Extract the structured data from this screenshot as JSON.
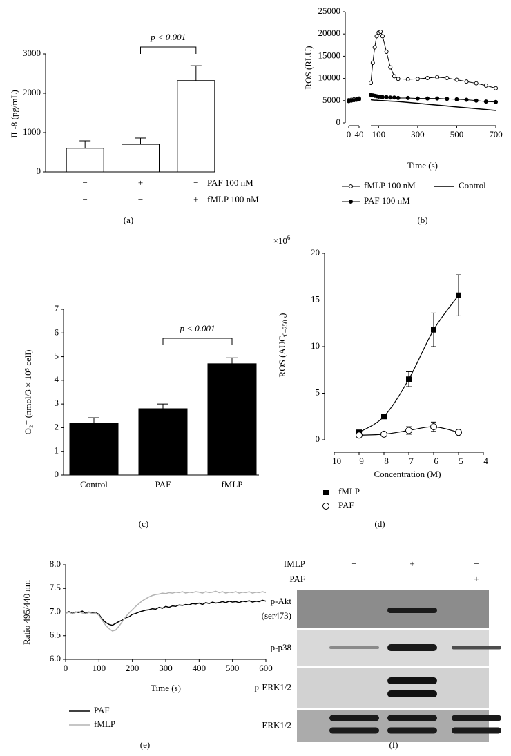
{
  "chart_data": [
    {
      "type": "bar",
      "label": "(a)",
      "ylabel": "IL-8 (pg/mL)",
      "categories": [
        null,
        null,
        null
      ],
      "values": [
        600,
        700,
        2320
      ],
      "errors": [
        190,
        160,
        380
      ],
      "color": "#ffffff",
      "ylim": [
        0,
        3000
      ],
      "yticks": [
        0,
        1000,
        2000,
        3000
      ],
      "annotation": "p < 0.001",
      "conditions": [
        {
          "name": "PAF 100 nM",
          "signs": [
            "−",
            "+",
            "−"
          ]
        },
        {
          "name": "fMLP 100 nM",
          "signs": [
            "−",
            "−",
            "+"
          ]
        }
      ]
    },
    {
      "type": "line",
      "label": "(b)",
      "ylabel": "ROS (RLU)",
      "xlabel": "Time (s)",
      "x": [
        0,
        10,
        20,
        30,
        40,
        50,
        60,
        70,
        80,
        90,
        100,
        110,
        120,
        140,
        160,
        180,
        200,
        250,
        300,
        350,
        400,
        450,
        500,
        550,
        600,
        650,
        700
      ],
      "xlim": [
        0,
        700
      ],
      "x_break": [
        40,
        60
      ],
      "xticks": [
        0,
        40,
        100,
        300,
        500,
        700
      ],
      "ylim": [
        0,
        25000
      ],
      "yticks": [
        0,
        5000,
        10000,
        15000,
        20000,
        25000
      ],
      "series": [
        {
          "name": "fMLP 100 nM",
          "color": "#000000",
          "marker": "open",
          "values": [
            5100,
            5200,
            5300,
            5300,
            5500,
            null,
            9000,
            13500,
            17000,
            19500,
            20300,
            20500,
            19500,
            16000,
            12500,
            10500,
            9900,
            9800,
            9900,
            10100,
            10300,
            10100,
            9700,
            9300,
            8900,
            8400,
            7800
          ]
        },
        {
          "name": "PAF 100 nM",
          "color": "#000000",
          "marker": "filled",
          "values": [
            4900,
            5000,
            5100,
            5200,
            5300,
            null,
            6300,
            6200,
            6100,
            6000,
            5900,
            5900,
            5800,
            5800,
            5700,
            5700,
            5600,
            5600,
            5500,
            5500,
            5500,
            5400,
            5300,
            5200,
            5000,
            4800,
            4700
          ]
        },
        {
          "name": "Control",
          "color": "#000000",
          "marker": "none",
          "values": [
            5000,
            5000,
            5000,
            5000,
            5000,
            null,
            5200,
            5150,
            5100,
            5100,
            5050,
            5000,
            5000,
            4950,
            4900,
            4850,
            4800,
            4600,
            4400,
            4200,
            4000,
            3800,
            3600,
            3400,
            3200,
            3000,
            2800
          ]
        }
      ]
    },
    {
      "type": "bar",
      "label": "(c)",
      "ylabel": "O₂⁻ (nmol/3 × 10⁵ cell)",
      "categories": [
        "Control",
        "PAF",
        "fMLP"
      ],
      "values": [
        2.2,
        2.8,
        4.7
      ],
      "errors": [
        0.22,
        0.2,
        0.25
      ],
      "color": "#000000",
      "ylim": [
        0,
        7
      ],
      "yticks": [
        0,
        1,
        2,
        3,
        4,
        5,
        6,
        7
      ],
      "annotation": "p < 0.001"
    },
    {
      "type": "scatter",
      "label": "(d)",
      "ylabel": [
        "ROS (AUC",
        "0–750 s",
        ")"
      ],
      "xlabel": "Concentration (M)",
      "multiplier": [
        "×10",
        "6"
      ],
      "x": [
        -9,
        -8,
        -7,
        -6,
        -5
      ],
      "xlim": [
        -10,
        -4
      ],
      "xticks": [
        {
          "value": -10,
          "label": "−10"
        },
        {
          "value": -9,
          "label": "−9"
        },
        {
          "value": -8,
          "label": "−8"
        },
        {
          "value": -7,
          "label": "−7"
        },
        {
          "value": -6,
          "label": "−6"
        },
        {
          "value": -5,
          "label": "−5"
        },
        {
          "value": -4,
          "label": "−4"
        }
      ],
      "ylim": [
        0,
        20
      ],
      "yticks": [
        0,
        5,
        10,
        15,
        20
      ],
      "series": [
        {
          "name": "fMLP",
          "color": "#000000",
          "marker": "square",
          "values": [
            0.8,
            2.5,
            6.5,
            11.8,
            15.5
          ],
          "errors": [
            0.2,
            0.2,
            0.8,
            1.8,
            2.2
          ]
        },
        {
          "name": "PAF",
          "color": "#000000",
          "marker": "circle",
          "values": [
            0.5,
            0.6,
            1.0,
            1.4,
            0.8
          ],
          "errors": [
            0.15,
            0.1,
            0.4,
            0.5,
            0.1
          ]
        }
      ]
    },
    {
      "type": "line",
      "label": "(e)",
      "ylabel": "Ratio 495/440 nm",
      "xlabel": "Time (s)",
      "x": [
        0,
        10,
        20,
        30,
        40,
        50,
        60,
        70,
        80,
        90,
        100,
        110,
        120,
        130,
        140,
        150,
        160,
        170,
        180,
        190,
        200,
        210,
        220,
        230,
        240,
        250,
        260,
        270,
        280,
        290,
        300,
        310,
        320,
        330,
        340,
        350,
        360,
        370,
        380,
        390,
        400,
        410,
        420,
        430,
        440,
        450,
        460,
        470,
        480,
        490,
        500,
        510,
        520,
        530,
        540,
        550,
        560,
        570,
        580,
        590,
        600
      ],
      "xlim": [
        0,
        600
      ],
      "xticks": [
        0,
        100,
        200,
        300,
        400,
        500,
        600
      ],
      "ylim": [
        6,
        8
      ],
      "yticks": [
        {
          "value": 6,
          "label": "6.0"
        },
        6.5,
        {
          "value": 7,
          "label": "7.0"
        },
        7.5,
        {
          "value": 8,
          "label": "8.0"
        }
      ],
      "series": [
        {
          "name": "PAF",
          "color": "#000000",
          "marker": "none",
          "values": [
            6.98,
            7.01,
            6.97,
            7.0,
            6.99,
            7.02,
            6.97,
            7.0,
            6.98,
            6.99,
            6.95,
            6.85,
            6.78,
            6.74,
            6.72,
            6.76,
            6.8,
            6.83,
            6.88,
            6.9,
            6.95,
            6.97,
            7.0,
            7.02,
            7.04,
            7.05,
            7.07,
            7.06,
            7.1,
            7.08,
            7.12,
            7.1,
            7.13,
            7.12,
            7.15,
            7.14,
            7.16,
            7.15,
            7.18,
            7.17,
            7.19,
            7.16,
            7.2,
            7.18,
            7.21,
            7.19,
            7.2,
            7.22,
            7.2,
            7.23,
            7.21,
            7.22,
            7.2,
            7.23,
            7.22,
            7.24,
            7.21,
            7.23,
            7.22,
            7.25,
            7.23
          ]
        },
        {
          "name": "fMLP",
          "color": "#b3b3b3",
          "marker": "none",
          "values": [
            6.97,
            7.0,
            6.96,
            6.99,
            7.01,
            6.98,
            6.96,
            6.99,
            6.97,
            6.98,
            6.93,
            6.82,
            6.72,
            6.65,
            6.6,
            6.62,
            6.7,
            6.8,
            6.9,
            6.98,
            7.05,
            7.12,
            7.18,
            7.24,
            7.28,
            7.32,
            7.35,
            7.37,
            7.38,
            7.4,
            7.39,
            7.41,
            7.4,
            7.42,
            7.41,
            7.43,
            7.4,
            7.42,
            7.41,
            7.43,
            7.42,
            7.4,
            7.43,
            7.41,
            7.42,
            7.44,
            7.41,
            7.43,
            7.4,
            7.42,
            7.41,
            7.43,
            7.4,
            7.42,
            7.41,
            7.43,
            7.4,
            7.42,
            7.41,
            7.43,
            7.41
          ]
        }
      ]
    }
  ],
  "blot": {
    "label": "(f)",
    "header": [
      {
        "name": "fMLP",
        "signs": [
          "−",
          "+",
          "−"
        ]
      },
      {
        "name": "PAF",
        "signs": [
          "−",
          "−",
          "+"
        ]
      }
    ],
    "rows": [
      [
        "p-Akt",
        "(ser473)"
      ],
      [
        "p-p38"
      ],
      [
        "p-ERK1/2"
      ],
      [
        "ERK1/2"
      ]
    ]
  }
}
